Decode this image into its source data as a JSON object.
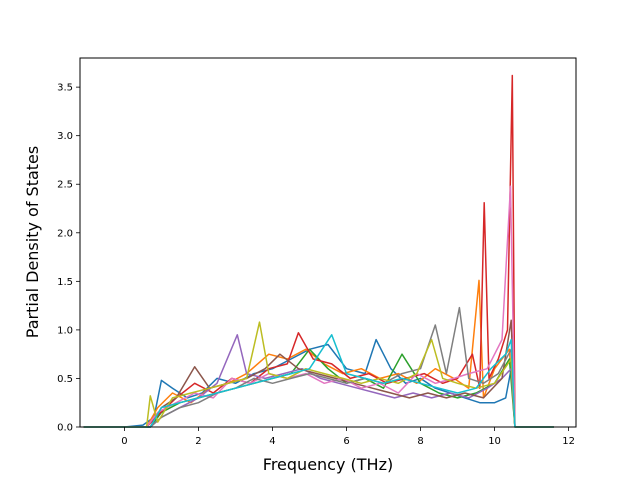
{
  "chart_data": {
    "type": "line",
    "title": "",
    "xlabel": "Frequency (THz)",
    "ylabel": "Partial Density of States",
    "xlim": [
      -1.2,
      12.2
    ],
    "ylim": [
      0,
      3.8
    ],
    "x_ticks": [
      0,
      2,
      4,
      6,
      8,
      10,
      12
    ],
    "x_tick_labels": [
      "0",
      "2",
      "4",
      "6",
      "8",
      "10",
      "12"
    ],
    "y_ticks": [
      0.0,
      0.5,
      1.0,
      1.5,
      2.0,
      2.5,
      3.0,
      3.5
    ],
    "y_tick_labels": [
      "0.0",
      "0.5",
      "1.0",
      "1.5",
      "2.0",
      "2.5",
      "3.0",
      "3.5"
    ],
    "grid": false,
    "legend": "none",
    "x_range_of_data": [
      -1.1,
      11.6
    ],
    "series_colors": [
      "#1f77b4",
      "#ff7f0e",
      "#2ca02c",
      "#d62728",
      "#9467bd",
      "#8c564b",
      "#e377c2",
      "#7f7f7f",
      "#bcbd22",
      "#17becf"
    ],
    "notable_peaks": [
      {
        "x": 10.48,
        "y": 3.62,
        "color": "#d62728"
      },
      {
        "x": 9.72,
        "y": 2.31,
        "color": "#d62728"
      },
      {
        "x": 10.43,
        "y": 2.48,
        "color": "#e377c2"
      },
      {
        "x": 9.58,
        "y": 1.51,
        "color": "#ff7f0e"
      },
      {
        "x": 9.05,
        "y": 1.23,
        "color": "#7f7f7f"
      },
      {
        "x": 8.4,
        "y": 1.05,
        "color": "#7f7f7f"
      },
      {
        "x": 3.65,
        "y": 1.08,
        "color": "#bcbd22"
      },
      {
        "x": 3.05,
        "y": 0.95,
        "color": "#9467bd"
      },
      {
        "x": 4.7,
        "y": 0.97,
        "color": "#d62728"
      },
      {
        "x": 5.6,
        "y": 0.95,
        "color": "#17becf"
      }
    ],
    "series": [
      {
        "color": "#1f77b4",
        "values": [
          [
            -1.1,
            0
          ],
          [
            0,
            0
          ],
          [
            0.5,
            0.02
          ],
          [
            0.8,
            0.1
          ],
          [
            1.0,
            0.48
          ],
          [
            1.3,
            0.4
          ],
          [
            1.7,
            0.3
          ],
          [
            2.1,
            0.35
          ],
          [
            2.5,
            0.5
          ],
          [
            3.0,
            0.45
          ],
          [
            3.5,
            0.55
          ],
          [
            4.0,
            0.6
          ],
          [
            4.5,
            0.7
          ],
          [
            5.0,
            0.8
          ],
          [
            5.5,
            0.85
          ],
          [
            6.0,
            0.6
          ],
          [
            6.5,
            0.55
          ],
          [
            6.8,
            0.9
          ],
          [
            7.2,
            0.6
          ],
          [
            7.6,
            0.45
          ],
          [
            8.0,
            0.5
          ],
          [
            8.4,
            0.4
          ],
          [
            8.8,
            0.35
          ],
          [
            9.2,
            0.3
          ],
          [
            9.6,
            0.25
          ],
          [
            10.0,
            0.25
          ],
          [
            10.3,
            0.3
          ],
          [
            10.45,
            0.6
          ],
          [
            10.55,
            0
          ],
          [
            11.6,
            0
          ]
        ]
      },
      {
        "color": "#ff7f0e",
        "values": [
          [
            -1.1,
            0
          ],
          [
            0.6,
            0
          ],
          [
            0.9,
            0.2
          ],
          [
            1.3,
            0.35
          ],
          [
            1.8,
            0.25
          ],
          [
            2.3,
            0.4
          ],
          [
            2.8,
            0.45
          ],
          [
            3.3,
            0.55
          ],
          [
            3.9,
            0.75
          ],
          [
            4.4,
            0.7
          ],
          [
            4.9,
            0.8
          ],
          [
            5.4,
            0.65
          ],
          [
            5.9,
            0.55
          ],
          [
            6.4,
            0.6
          ],
          [
            6.9,
            0.5
          ],
          [
            7.4,
            0.55
          ],
          [
            7.9,
            0.45
          ],
          [
            8.4,
            0.6
          ],
          [
            8.9,
            0.5
          ],
          [
            9.3,
            0.4
          ],
          [
            9.58,
            1.51
          ],
          [
            9.7,
            0.3
          ],
          [
            10.0,
            0.6
          ],
          [
            10.4,
            0.8
          ],
          [
            10.55,
            0
          ],
          [
            11.6,
            0
          ]
        ]
      },
      {
        "color": "#2ca02c",
        "values": [
          [
            -1.1,
            0
          ],
          [
            0.7,
            0
          ],
          [
            1.0,
            0.15
          ],
          [
            1.5,
            0.25
          ],
          [
            2.0,
            0.3
          ],
          [
            2.5,
            0.35
          ],
          [
            3.0,
            0.4
          ],
          [
            3.5,
            0.45
          ],
          [
            4.0,
            0.5
          ],
          [
            4.5,
            0.55
          ],
          [
            5.0,
            0.8
          ],
          [
            5.5,
            0.6
          ],
          [
            6.0,
            0.45
          ],
          [
            6.5,
            0.5
          ],
          [
            7.0,
            0.4
          ],
          [
            7.5,
            0.75
          ],
          [
            8.0,
            0.45
          ],
          [
            8.5,
            0.35
          ],
          [
            9.0,
            0.3
          ],
          [
            9.5,
            0.35
          ],
          [
            10.0,
            0.45
          ],
          [
            10.4,
            0.7
          ],
          [
            10.55,
            0
          ],
          [
            11.6,
            0
          ]
        ]
      },
      {
        "color": "#d62728",
        "values": [
          [
            -1.1,
            0
          ],
          [
            0.6,
            0
          ],
          [
            0.9,
            0.12
          ],
          [
            1.4,
            0.3
          ],
          [
            1.9,
            0.45
          ],
          [
            2.4,
            0.35
          ],
          [
            2.9,
            0.5
          ],
          [
            3.4,
            0.45
          ],
          [
            3.9,
            0.6
          ],
          [
            4.4,
            0.65
          ],
          [
            4.7,
            0.97
          ],
          [
            5.1,
            0.7
          ],
          [
            5.6,
            0.65
          ],
          [
            6.1,
            0.5
          ],
          [
            6.6,
            0.55
          ],
          [
            7.1,
            0.45
          ],
          [
            7.6,
            0.5
          ],
          [
            8.1,
            0.55
          ],
          [
            8.6,
            0.45
          ],
          [
            9.0,
            0.5
          ],
          [
            9.4,
            0.75
          ],
          [
            9.6,
            0.4
          ],
          [
            9.72,
            2.31
          ],
          [
            9.85,
            0.5
          ],
          [
            10.1,
            0.7
          ],
          [
            10.35,
            1.0
          ],
          [
            10.48,
            3.62
          ],
          [
            10.55,
            0
          ],
          [
            11.6,
            0
          ]
        ]
      },
      {
        "color": "#9467bd",
        "values": [
          [
            -1.1,
            0
          ],
          [
            0.7,
            0
          ],
          [
            1.0,
            0.1
          ],
          [
            1.5,
            0.2
          ],
          [
            2.0,
            0.3
          ],
          [
            2.5,
            0.45
          ],
          [
            3.05,
            0.95
          ],
          [
            3.3,
            0.55
          ],
          [
            3.8,
            0.5
          ],
          [
            4.3,
            0.55
          ],
          [
            4.8,
            0.6
          ],
          [
            5.3,
            0.5
          ],
          [
            5.8,
            0.45
          ],
          [
            6.3,
            0.4
          ],
          [
            6.8,
            0.35
          ],
          [
            7.3,
            0.3
          ],
          [
            7.8,
            0.35
          ],
          [
            8.3,
            0.3
          ],
          [
            8.8,
            0.35
          ],
          [
            9.3,
            0.3
          ],
          [
            9.8,
            0.4
          ],
          [
            10.2,
            0.5
          ],
          [
            10.45,
            0.6
          ],
          [
            10.55,
            0
          ],
          [
            11.6,
            0
          ]
        ]
      },
      {
        "color": "#8c564b",
        "values": [
          [
            -1.1,
            0
          ],
          [
            0.7,
            0
          ],
          [
            1.0,
            0.2
          ],
          [
            1.4,
            0.3
          ],
          [
            1.9,
            0.62
          ],
          [
            2.3,
            0.4
          ],
          [
            2.8,
            0.45
          ],
          [
            3.3,
            0.5
          ],
          [
            3.8,
            0.6
          ],
          [
            4.2,
            0.75
          ],
          [
            4.7,
            0.6
          ],
          [
            5.2,
            0.55
          ],
          [
            5.7,
            0.5
          ],
          [
            6.2,
            0.45
          ],
          [
            6.7,
            0.4
          ],
          [
            7.2,
            0.35
          ],
          [
            7.7,
            0.3
          ],
          [
            8.2,
            0.35
          ],
          [
            8.7,
            0.3
          ],
          [
            9.2,
            0.35
          ],
          [
            9.7,
            0.3
          ],
          [
            10.2,
            0.5
          ],
          [
            10.45,
            1.1
          ],
          [
            10.55,
            0
          ],
          [
            11.6,
            0
          ]
        ]
      },
      {
        "color": "#e377c2",
        "values": [
          [
            -1.1,
            0
          ],
          [
            0.6,
            0
          ],
          [
            0.9,
            0.15
          ],
          [
            1.4,
            0.25
          ],
          [
            1.9,
            0.35
          ],
          [
            2.4,
            0.3
          ],
          [
            2.9,
            0.5
          ],
          [
            3.4,
            0.45
          ],
          [
            3.9,
            0.55
          ],
          [
            4.4,
            0.5
          ],
          [
            4.9,
            0.55
          ],
          [
            5.4,
            0.45
          ],
          [
            5.9,
            0.5
          ],
          [
            6.4,
            0.4
          ],
          [
            6.9,
            0.45
          ],
          [
            7.4,
            0.35
          ],
          [
            7.9,
            0.55
          ],
          [
            8.4,
            0.45
          ],
          [
            8.9,
            0.5
          ],
          [
            9.3,
            0.55
          ],
          [
            9.8,
            0.6
          ],
          [
            10.2,
            0.9
          ],
          [
            10.43,
            2.48
          ],
          [
            10.55,
            0
          ],
          [
            11.6,
            0
          ]
        ]
      },
      {
        "color": "#7f7f7f",
        "values": [
          [
            -1.1,
            0
          ],
          [
            0.7,
            0
          ],
          [
            1.0,
            0.1
          ],
          [
            1.5,
            0.2
          ],
          [
            2.0,
            0.25
          ],
          [
            2.5,
            0.35
          ],
          [
            3.0,
            0.4
          ],
          [
            3.5,
            0.5
          ],
          [
            4.0,
            0.45
          ],
          [
            4.5,
            0.5
          ],
          [
            5.0,
            0.55
          ],
          [
            5.5,
            0.5
          ],
          [
            6.0,
            0.45
          ],
          [
            6.5,
            0.5
          ],
          [
            7.0,
            0.45
          ],
          [
            7.5,
            0.55
          ],
          [
            8.0,
            0.6
          ],
          [
            8.4,
            1.05
          ],
          [
            8.7,
            0.55
          ],
          [
            9.05,
            1.23
          ],
          [
            9.3,
            0.5
          ],
          [
            9.7,
            0.45
          ],
          [
            10.1,
            0.55
          ],
          [
            10.45,
            0.8
          ],
          [
            10.55,
            0
          ],
          [
            11.6,
            0
          ]
        ]
      },
      {
        "color": "#bcbd22",
        "values": [
          [
            -1.1,
            0
          ],
          [
            0.6,
            0
          ],
          [
            0.7,
            0.32
          ],
          [
            0.9,
            0.05
          ],
          [
            1.3,
            0.3
          ],
          [
            1.8,
            0.35
          ],
          [
            2.3,
            0.4
          ],
          [
            2.8,
            0.45
          ],
          [
            3.3,
            0.5
          ],
          [
            3.65,
            1.08
          ],
          [
            3.9,
            0.55
          ],
          [
            4.4,
            0.5
          ],
          [
            4.9,
            0.6
          ],
          [
            5.4,
            0.55
          ],
          [
            5.9,
            0.5
          ],
          [
            6.4,
            0.45
          ],
          [
            6.9,
            0.5
          ],
          [
            7.4,
            0.45
          ],
          [
            7.9,
            0.55
          ],
          [
            8.3,
            0.9
          ],
          [
            8.6,
            0.5
          ],
          [
            9.0,
            0.45
          ],
          [
            9.5,
            0.4
          ],
          [
            10.0,
            0.45
          ],
          [
            10.45,
            0.7
          ],
          [
            10.55,
            0
          ],
          [
            11.6,
            0
          ]
        ]
      },
      {
        "color": "#17becf",
        "values": [
          [
            -1.1,
            0
          ],
          [
            0.7,
            0
          ],
          [
            1.0,
            0.2
          ],
          [
            1.5,
            0.25
          ],
          [
            2.0,
            0.3
          ],
          [
            2.5,
            0.35
          ],
          [
            3.0,
            0.4
          ],
          [
            3.5,
            0.45
          ],
          [
            4.0,
            0.5
          ],
          [
            4.5,
            0.55
          ],
          [
            5.0,
            0.6
          ],
          [
            5.6,
            0.95
          ],
          [
            6.0,
            0.55
          ],
          [
            6.5,
            0.5
          ],
          [
            7.0,
            0.45
          ],
          [
            7.5,
            0.5
          ],
          [
            8.0,
            0.45
          ],
          [
            8.5,
            0.4
          ],
          [
            9.0,
            0.35
          ],
          [
            9.5,
            0.4
          ],
          [
            9.9,
            0.6
          ],
          [
            10.3,
            0.75
          ],
          [
            10.45,
            0.9
          ],
          [
            10.55,
            0
          ],
          [
            11.6,
            0
          ]
        ]
      }
    ]
  }
}
